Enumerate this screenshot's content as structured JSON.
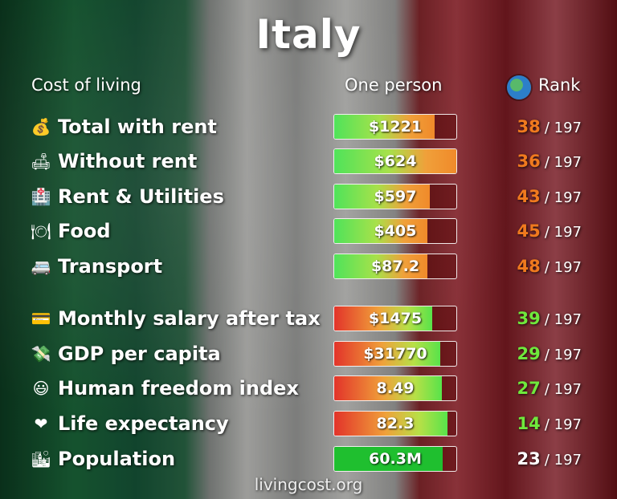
{
  "title": "Italy",
  "header": {
    "left": "Cost of living",
    "middle": "One person",
    "right": "Rank",
    "right_icon": "globe-icon"
  },
  "colors": {
    "cost_rank": "#f07a1e",
    "good_rank": "#6fe83c",
    "neutral_rank": "#ffffff"
  },
  "rows": [
    {
      "icon": "money-bag-icon",
      "glyph": "💰",
      "label": "Total with rent",
      "value": "$1221",
      "fill": 0.82,
      "bar": "cost",
      "rank": "38",
      "rank_color": "#f07a1e",
      "total": "/ 197"
    },
    {
      "icon": "sofa-icon",
      "glyph": "🛋",
      "label": "Without rent",
      "value": "$624",
      "fill": 1.0,
      "bar": "cost",
      "rank": "36",
      "rank_color": "#f07a1e",
      "total": "/ 197"
    },
    {
      "icon": "hospital-icon",
      "glyph": "🏥",
      "label": "Rent & Utilities",
      "value": "$597",
      "fill": 0.78,
      "bar": "cost",
      "rank": "43",
      "rank_color": "#f07a1e",
      "total": "/ 197"
    },
    {
      "icon": "plate-icon",
      "glyph": "🍽",
      "label": "Food",
      "value": "$405",
      "fill": 0.76,
      "bar": "cost",
      "rank": "45",
      "rank_color": "#f07a1e",
      "total": "/ 197"
    },
    {
      "icon": "minibus-icon",
      "glyph": "🚐",
      "label": "Transport",
      "value": "$87.2",
      "fill": 0.76,
      "bar": "cost",
      "rank": "48",
      "rank_color": "#f07a1e",
      "total": "/ 197"
    },
    {
      "icon": "credit-card-icon",
      "glyph": "💳",
      "label": "Monthly salary after tax",
      "value": "$1475",
      "fill": 0.8,
      "bar": "good",
      "rank": "39",
      "rank_color": "#6fe83c",
      "total": "/ 197"
    },
    {
      "icon": "money-wings-icon",
      "glyph": "💸",
      "label": "GDP per capita",
      "value": "$31770",
      "fill": 0.87,
      "bar": "good",
      "rank": "29",
      "rank_color": "#6fe83c",
      "total": "/ 197"
    },
    {
      "icon": "smiley-icon",
      "glyph": "😃",
      "label": "Human freedom index",
      "value": "8.49",
      "fill": 0.88,
      "bar": "good",
      "rank": "27",
      "rank_color": "#6fe83c",
      "total": "/ 197"
    },
    {
      "icon": "heart-icon",
      "glyph": "❤",
      "label": "Life expectancy",
      "value": "82.3",
      "fill": 0.93,
      "bar": "good",
      "rank": "14",
      "rank_color": "#6fe83c",
      "total": "/ 197"
    },
    {
      "icon": "city-icon",
      "glyph": "🏙",
      "label": "Population",
      "value": "60.3M",
      "fill": 0.89,
      "bar": "pop",
      "rank": "23",
      "rank_color": "#ffffff",
      "total": "/ 197"
    }
  ],
  "footer": "livingcost.org"
}
